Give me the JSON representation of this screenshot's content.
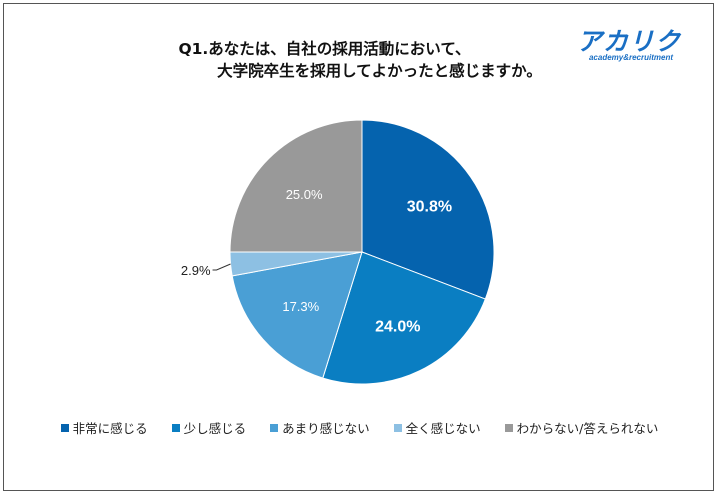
{
  "title": {
    "line1": "Q1.あなたは、自社の採用活動において、",
    "line2": "大学院卒生を採用してよかったと感じますか。"
  },
  "logo": {
    "main": "アカリク",
    "sub": "academy&recruitment",
    "color": "#1a6fc4"
  },
  "chart_data": {
    "type": "pie",
    "categories": [
      "非常に感じる",
      "少し感じる",
      "あまり感じない",
      "全く感じない",
      "わからない/答えられない"
    ],
    "values": [
      30.8,
      24.0,
      17.3,
      2.9,
      25.0
    ],
    "labels": [
      "30.8%",
      "24.0%",
      "17.3%",
      "2.9%",
      "25.0%"
    ],
    "colors": [
      "#0563ae",
      "#0a7ec2",
      "#4a9fd5",
      "#8dc0e3",
      "#999999"
    ],
    "legend_position": "bottom",
    "start_angle": "12 o'clock",
    "direction": "clockwise"
  }
}
